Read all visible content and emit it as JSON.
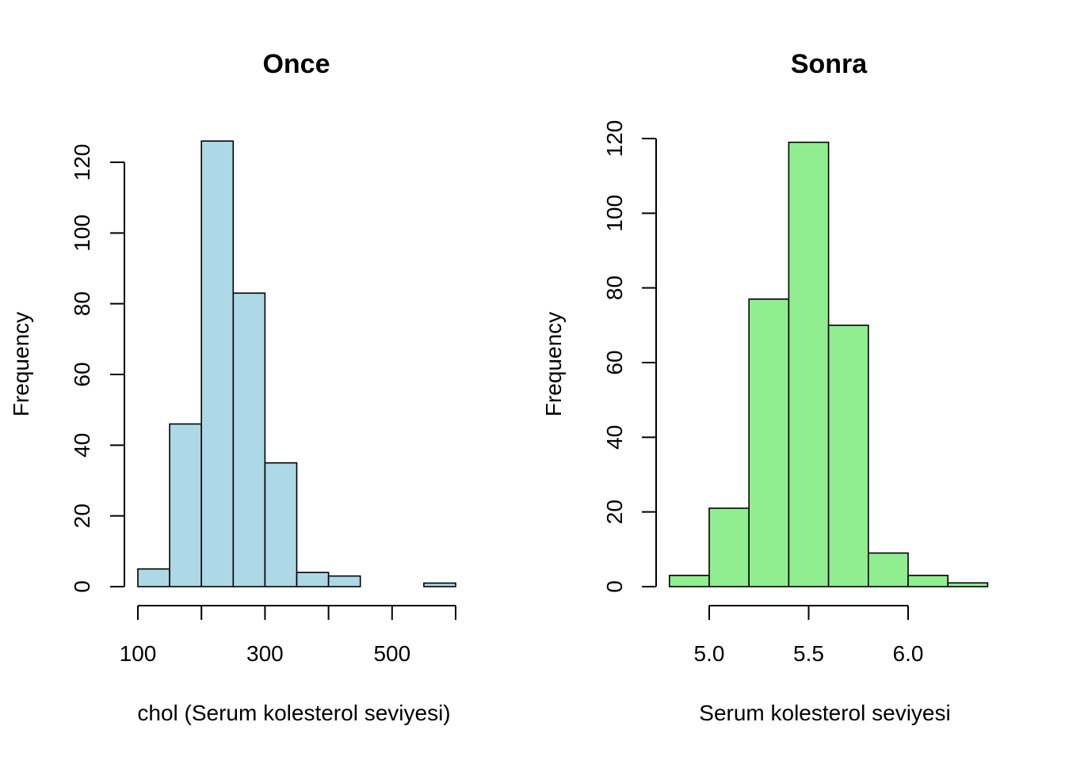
{
  "chart_data": [
    {
      "type": "bar",
      "subtype": "histogram",
      "title": "Once",
      "xlabel": "chol (Serum kolesterol seviyesi)",
      "ylabel": "Frequency",
      "color": "#add8e6",
      "bin_edges": [
        100,
        150,
        200,
        250,
        300,
        350,
        400,
        450,
        500,
        550,
        600
      ],
      "values": [
        5,
        46,
        126,
        83,
        35,
        4,
        3,
        0,
        0,
        1
      ],
      "xlim": [
        100,
        600
      ],
      "ylim": [
        0,
        120
      ],
      "xticks": [
        100,
        200,
        300,
        400,
        500,
        600
      ],
      "xtick_labels": [
        "100",
        "",
        "300",
        "",
        "500",
        ""
      ],
      "yticks": [
        0,
        20,
        40,
        60,
        80,
        100,
        120
      ],
      "ytick_labels": [
        "0",
        "20",
        "40",
        "60",
        "80",
        "100",
        "120"
      ],
      "grid": false
    },
    {
      "type": "bar",
      "subtype": "histogram",
      "title": "Sonra",
      "xlabel": "Serum kolesterol seviyesi",
      "ylabel": "Frequency",
      "color": "#90ee90",
      "bin_edges": [
        4.8,
        5.0,
        5.2,
        5.4,
        5.6,
        5.8,
        6.0,
        6.2,
        6.4
      ],
      "values": [
        3,
        21,
        77,
        119,
        70,
        9,
        3,
        1
      ],
      "xlim": [
        5.0,
        6.0
      ],
      "ylim": [
        0,
        120
      ],
      "xticks": [
        5.0,
        5.5,
        6.0
      ],
      "xtick_labels": [
        "5.0",
        "5.5",
        "6.0"
      ],
      "yticks": [
        0,
        20,
        40,
        60,
        80,
        100,
        120
      ],
      "ytick_labels": [
        "0",
        "20",
        "40",
        "60",
        "80",
        "100",
        "120"
      ],
      "grid": false
    }
  ]
}
